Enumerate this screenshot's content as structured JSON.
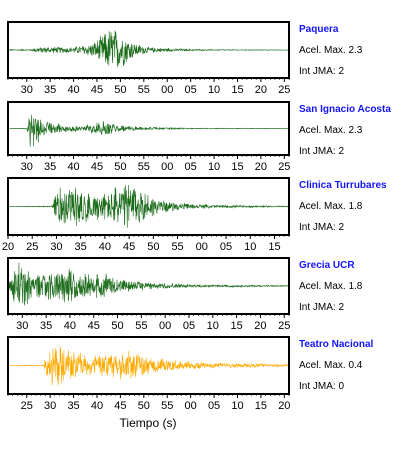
{
  "chart_data": {
    "type": "line",
    "xlabel": "Tiempo (s)",
    "panels": [
      {
        "station": "Paquera",
        "acel_label": "Acel. Max. 2.3",
        "jma_label": "Int JMA: 2",
        "color": "#1a6b1a",
        "tick_labels": [
          "30",
          "35",
          "40",
          "45",
          "50",
          "55",
          "00",
          "05",
          "10",
          "15",
          "20",
          "25"
        ],
        "tick_seconds": [
          30,
          35,
          40,
          45,
          50,
          55,
          60,
          65,
          70,
          75,
          80,
          85
        ],
        "xlim": [
          26,
          86
        ],
        "envelope": [
          {
            "t": 26,
            "a": 0.02
          },
          {
            "t": 31,
            "a": 0.03
          },
          {
            "t": 32,
            "a": 0.12
          },
          {
            "t": 36,
            "a": 0.14
          },
          {
            "t": 40,
            "a": 0.12
          },
          {
            "t": 44,
            "a": 0.3
          },
          {
            "t": 46,
            "a": 0.6
          },
          {
            "t": 48,
            "a": 1.0
          },
          {
            "t": 50,
            "a": 0.8
          },
          {
            "t": 53,
            "a": 0.3
          },
          {
            "t": 56,
            "a": 0.12
          },
          {
            "t": 62,
            "a": 0.05
          },
          {
            "t": 70,
            "a": 0.02
          },
          {
            "t": 86,
            "a": 0.01
          }
        ]
      },
      {
        "station": "San Ignacio Acosta",
        "acel_label": "Acel. Max. 2.3",
        "jma_label": "Int JMA: 2",
        "color": "#1a6b1a",
        "tick_labels": [
          "30",
          "35",
          "40",
          "45",
          "50",
          "55",
          "00",
          "05",
          "10",
          "15",
          "20",
          "25"
        ],
        "tick_seconds": [
          30,
          35,
          40,
          45,
          50,
          55,
          60,
          65,
          70,
          75,
          80,
          85
        ],
        "xlim": [
          26,
          86
        ],
        "envelope": [
          {
            "t": 26,
            "a": 0.01
          },
          {
            "t": 30,
            "a": 0.02
          },
          {
            "t": 30.8,
            "a": 1.0
          },
          {
            "t": 32,
            "a": 0.7
          },
          {
            "t": 34,
            "a": 0.35
          },
          {
            "t": 38,
            "a": 0.15
          },
          {
            "t": 42,
            "a": 0.12
          },
          {
            "t": 45,
            "a": 0.3
          },
          {
            "t": 47,
            "a": 0.32
          },
          {
            "t": 50,
            "a": 0.15
          },
          {
            "t": 56,
            "a": 0.06
          },
          {
            "t": 66,
            "a": 0.02
          },
          {
            "t": 86,
            "a": 0.01
          }
        ]
      },
      {
        "station": "Clinica Turrubares",
        "acel_label": "Acel. Max. 1.8",
        "jma_label": "Int JMA: 2",
        "color": "#1a6b1a",
        "tick_labels": [
          "20",
          "25",
          "30",
          "35",
          "40",
          "45",
          "50",
          "55",
          "00",
          "05",
          "10",
          "15"
        ],
        "tick_seconds": [
          20,
          25,
          30,
          35,
          40,
          45,
          50,
          55,
          60,
          65,
          70,
          75
        ],
        "xlim": [
          20,
          78
        ],
        "envelope": [
          {
            "t": 20,
            "a": 0.01
          },
          {
            "t": 29,
            "a": 0.02
          },
          {
            "t": 30,
            "a": 0.8
          },
          {
            "t": 33,
            "a": 0.9
          },
          {
            "t": 37,
            "a": 0.6
          },
          {
            "t": 40,
            "a": 0.55
          },
          {
            "t": 43,
            "a": 0.95
          },
          {
            "t": 46,
            "a": 1.0
          },
          {
            "t": 49,
            "a": 0.5
          },
          {
            "t": 53,
            "a": 0.2
          },
          {
            "t": 58,
            "a": 0.1
          },
          {
            "t": 66,
            "a": 0.05
          },
          {
            "t": 78,
            "a": 0.02
          }
        ]
      },
      {
        "station": "Grecia UCR",
        "acel_label": "Acel. Max. 1.8",
        "jma_label": "Int JMA: 2",
        "color": "#1a6b1a",
        "tick_labels": [
          "30",
          "35",
          "40",
          "45",
          "50",
          "55",
          "00",
          "05",
          "10",
          "15",
          "20",
          "25"
        ],
        "tick_seconds": [
          30,
          35,
          40,
          45,
          50,
          55,
          60,
          65,
          70,
          75,
          80,
          85
        ],
        "xlim": [
          27,
          86
        ],
        "envelope": [
          {
            "t": 27,
            "a": 0.1
          },
          {
            "t": 28.5,
            "a": 1.0
          },
          {
            "t": 30,
            "a": 0.9
          },
          {
            "t": 33,
            "a": 0.5
          },
          {
            "t": 36,
            "a": 0.6
          },
          {
            "t": 40,
            "a": 0.7
          },
          {
            "t": 44,
            "a": 0.5
          },
          {
            "t": 47,
            "a": 0.55
          },
          {
            "t": 52,
            "a": 0.25
          },
          {
            "t": 58,
            "a": 0.12
          },
          {
            "t": 66,
            "a": 0.06
          },
          {
            "t": 86,
            "a": 0.02
          }
        ]
      },
      {
        "station": "Teatro Nacional",
        "acel_label": "Acel. Max. 0.4",
        "jma_label": "Int JMA: 0",
        "color": "#ffaa00",
        "tick_labels": [
          "25",
          "30",
          "35",
          "40",
          "45",
          "50",
          "55",
          "00",
          "05",
          "10",
          "15",
          "20"
        ],
        "tick_seconds": [
          25,
          30,
          35,
          40,
          45,
          50,
          55,
          60,
          65,
          70,
          75,
          80
        ],
        "xlim": [
          21,
          81
        ],
        "envelope": [
          {
            "t": 21,
            "a": 0.01
          },
          {
            "t": 28.5,
            "a": 0.02
          },
          {
            "t": 29.5,
            "a": 0.7
          },
          {
            "t": 31,
            "a": 1.0
          },
          {
            "t": 34,
            "a": 0.6
          },
          {
            "t": 38,
            "a": 0.45
          },
          {
            "t": 41,
            "a": 0.5
          },
          {
            "t": 45,
            "a": 0.55
          },
          {
            "t": 48,
            "a": 0.6
          },
          {
            "t": 52,
            "a": 0.35
          },
          {
            "t": 57,
            "a": 0.2
          },
          {
            "t": 64,
            "a": 0.12
          },
          {
            "t": 72,
            "a": 0.08
          },
          {
            "t": 81,
            "a": 0.05
          }
        ]
      }
    ]
  }
}
